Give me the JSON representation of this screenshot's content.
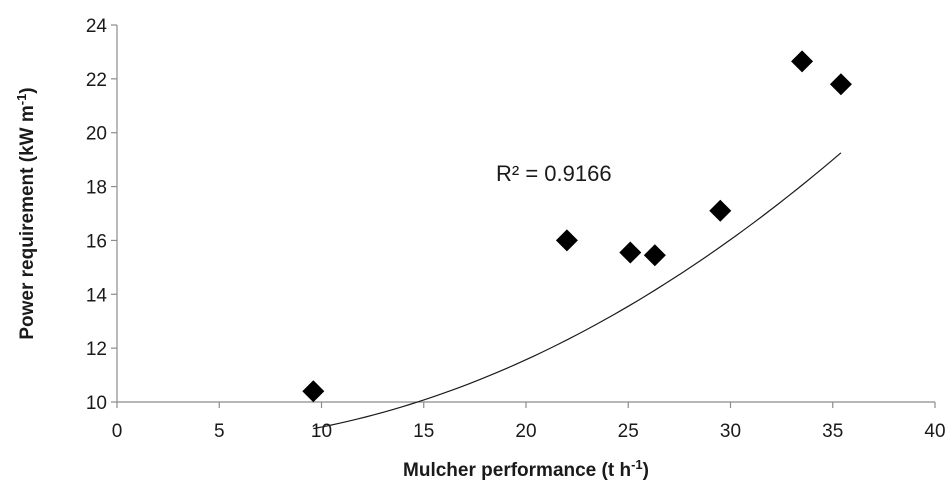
{
  "chart_data": {
    "type": "scatter",
    "x": [
      9.6,
      22.0,
      25.1,
      26.3,
      29.5,
      33.5,
      35.4
    ],
    "y": [
      10.4,
      16.0,
      15.55,
      15.45,
      17.1,
      22.65,
      21.8
    ],
    "xlabel": "Mulcher performance (t h",
    "xlabel_sup": "-1",
    "xlabel_end": ")",
    "ylabel": "Power requirement (kW m",
    "ylabel_sup": "-1",
    "ylabel_end": ")",
    "xlim": [
      0,
      40
    ],
    "ylim": [
      10,
      24
    ],
    "xticks": [
      0,
      5,
      10,
      15,
      20,
      25,
      30,
      35,
      40
    ],
    "yticks": [
      10,
      12,
      14,
      16,
      18,
      20,
      22,
      24
    ],
    "xtick_labels": [
      "0",
      "5",
      "10",
      "15",
      "20",
      "25",
      "30",
      "35",
      "40"
    ],
    "ytick_labels": [
      "10",
      "12",
      "14",
      "16",
      "18",
      "20",
      "22",
      "24"
    ],
    "trendline": {
      "type": "polynomial",
      "coefficients": [
        8.53,
        -0.044,
        0.0098
      ],
      "x_range": [
        9.6,
        35.4
      ]
    },
    "annotation": "R² = 0.9166",
    "annotation_at": [
      20,
      18.2
    ],
    "marker": "diamond",
    "marker_color": "#000000",
    "grid": false,
    "legend": "none"
  }
}
